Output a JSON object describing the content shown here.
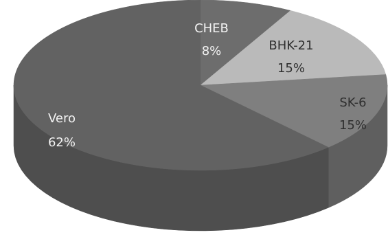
{
  "chart_data": {
    "type": "pie",
    "style": "3d",
    "slices": [
      {
        "label": "CHEB",
        "value": 8,
        "value_label": "8%",
        "color": "#6d6d6d",
        "side_color": "#555555"
      },
      {
        "label": "BHK-21",
        "value": 15,
        "value_label": "15%",
        "color": "#bababa",
        "side_color": "#8f8f8f"
      },
      {
        "label": "SK-6",
        "value": 15,
        "value_label": "15%",
        "color": "#7f7f7f",
        "side_color": "#5f5f5f"
      },
      {
        "label": "Vero",
        "value": 62,
        "value_label": "62%",
        "color": "#626262",
        "side_color": "#4e4e4e"
      }
    ],
    "legend": "none"
  }
}
